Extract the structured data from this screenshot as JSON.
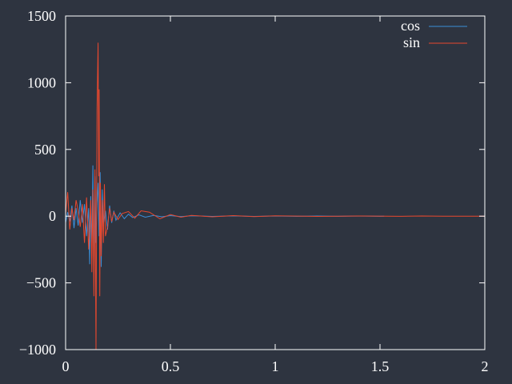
{
  "colors": {
    "background": "#2e3440",
    "axis": "#ffffff",
    "cos": "#3a8fd9",
    "sin": "#e8482e"
  },
  "chart_data": {
    "type": "line",
    "title": "",
    "xlabel": "",
    "ylabel": "",
    "xlim": [
      0,
      2
    ],
    "ylim": [
      -1000,
      1500
    ],
    "x_ticks": [
      0,
      0.5,
      1,
      1.5,
      2
    ],
    "x_tick_labels": [
      "0",
      "0.5",
      "1",
      "1.5",
      "2"
    ],
    "y_ticks": [
      -1000,
      -500,
      0,
      500,
      1000,
      1500
    ],
    "y_tick_labels": [
      "−1000",
      "−500",
      "0",
      "500",
      "1000",
      "1500"
    ],
    "grid": false,
    "legend_position": "top-right",
    "series": [
      {
        "name": "cos",
        "x": [
          0,
          0.01,
          0.02,
          0.03,
          0.04,
          0.05,
          0.06,
          0.07,
          0.08,
          0.09,
          0.1,
          0.11,
          0.115,
          0.12,
          0.125,
          0.13,
          0.135,
          0.14,
          0.145,
          0.15,
          0.155,
          0.16,
          0.165,
          0.17,
          0.175,
          0.18,
          0.19,
          0.2,
          0.21,
          0.22,
          0.23,
          0.24,
          0.26,
          0.28,
          0.3,
          0.32,
          0.35,
          0.38,
          0.42,
          0.46,
          0.5,
          0.55,
          0.6,
          0.7,
          0.8,
          0.9,
          1.0,
          1.1,
          1.2,
          1.3,
          1.4,
          1.5,
          1.52
        ],
        "y": [
          -50,
          30,
          -40,
          80,
          -90,
          60,
          -70,
          120,
          -50,
          90,
          -150,
          60,
          -360,
          150,
          -250,
          380,
          -420,
          300,
          -200,
          100,
          250,
          -150,
          330,
          -380,
          200,
          -60,
          40,
          -100,
          80,
          -50,
          40,
          -30,
          25,
          -20,
          15,
          -10,
          10,
          -8,
          6,
          -5,
          4,
          -3,
          3,
          -2,
          2,
          -2,
          1,
          -1,
          1,
          -1,
          1,
          -1,
          0
        ]
      },
      {
        "name": "sin",
        "x": [
          0,
          0.01,
          0.02,
          0.03,
          0.04,
          0.05,
          0.06,
          0.07,
          0.08,
          0.09,
          0.1,
          0.11,
          0.12,
          0.125,
          0.13,
          0.135,
          0.14,
          0.145,
          0.15,
          0.155,
          0.158,
          0.16,
          0.163,
          0.166,
          0.17,
          0.175,
          0.18,
          0.185,
          0.19,
          0.2,
          0.21,
          0.22,
          0.23,
          0.25,
          0.27,
          0.3,
          0.33,
          0.36,
          0.4,
          0.45,
          0.5,
          0.55,
          0.6,
          0.7,
          0.8,
          0.9,
          1.0,
          1.2,
          1.4,
          1.6,
          1.7,
          1.8,
          2.0
        ],
        "y": [
          20,
          180,
          -100,
          60,
          -30,
          120,
          40,
          -80,
          90,
          -200,
          140,
          -250,
          120,
          -420,
          200,
          -600,
          350,
          -1000,
          800,
          1300,
          300,
          950,
          -600,
          250,
          -300,
          120,
          -200,
          240,
          -150,
          -80,
          60,
          -40,
          30,
          -25,
          20,
          35,
          -15,
          40,
          30,
          -20,
          12,
          -8,
          6,
          -5,
          4,
          -3,
          3,
          -2,
          1,
          -1,
          1,
          0,
          0
        ]
      }
    ]
  }
}
